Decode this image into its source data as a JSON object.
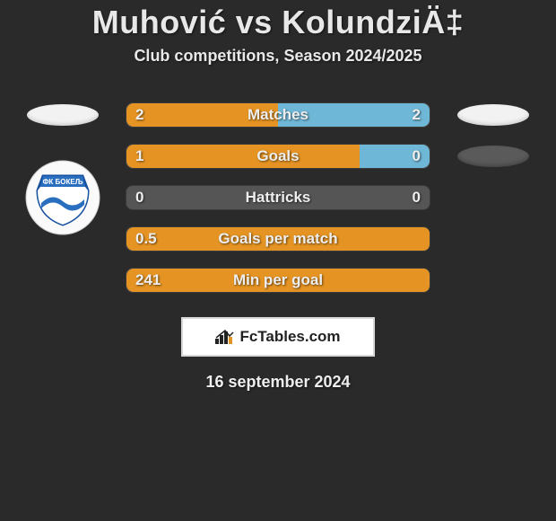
{
  "title": "Muhović vs KolundziÄ‡",
  "subtitle": "Club competitions, Season 2024/2025",
  "date": "16 september 2024",
  "fctables_label": "FcTables.com",
  "colors": {
    "left_bar": "#e59423",
    "right_bar": "#6fb7d6",
    "neutral_bar": "#555555",
    "row_bg": "#555555"
  },
  "rows": [
    {
      "label": "Matches",
      "left_val": "2",
      "right_val": "2",
      "left_pct": 50,
      "right_pct": 50,
      "left_oval": "white",
      "right_oval": "white"
    },
    {
      "label": "Goals",
      "left_val": "1",
      "right_val": "0",
      "left_pct": 77,
      "right_pct": 23,
      "left_oval": null,
      "right_oval": "dark"
    },
    {
      "label": "Hattricks",
      "left_val": "0",
      "right_val": "0",
      "left_pct": 0,
      "right_pct": 0,
      "left_oval": null,
      "right_oval": null
    },
    {
      "label": "Goals per match",
      "left_val": "0.5",
      "right_val": "",
      "left_pct": 100,
      "right_pct": 0,
      "left_oval": null,
      "right_oval": null
    },
    {
      "label": "Min per goal",
      "left_val": "241",
      "right_val": "",
      "left_pct": 100,
      "right_pct": 0,
      "left_oval": null,
      "right_oval": null
    }
  ]
}
